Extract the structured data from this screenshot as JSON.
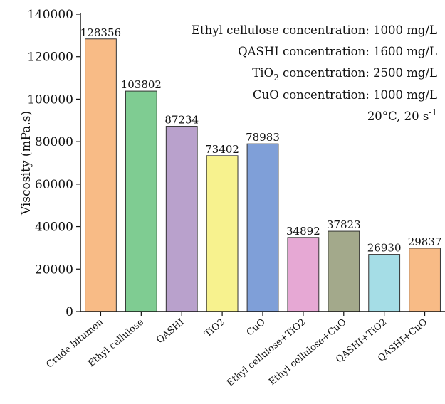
{
  "chart_data": {
    "type": "bar",
    "title": "",
    "xlabel": "",
    "ylabel": "Viscosity (mPa.s)",
    "ylim": [
      0,
      140000
    ],
    "yticks": [
      0,
      20000,
      40000,
      60000,
      80000,
      100000,
      120000,
      140000
    ],
    "grid": false,
    "categories": [
      "Crude bitumen",
      "Ethyl cellulose",
      "QASHI",
      "TiO2",
      "CuO",
      "Ethyl cellulose+TiO2",
      "Ethyl cellulose+CuO",
      "QASHI+TiO2",
      "QASHI+CuO"
    ],
    "values": [
      128356,
      103802,
      87234,
      73402,
      78983,
      34892,
      37823,
      26930,
      29837
    ],
    "data_labels": [
      "128356",
      "103802",
      "87234",
      "73402",
      "78983",
      "34892",
      "37823",
      "26930",
      "29837"
    ],
    "bar_colors": [
      "#f8bb86",
      "#7fcc92",
      "#b9a1cc",
      "#f7f28e",
      "#7f9fd8",
      "#e6a8d4",
      "#a3a98b",
      "#a5dde6",
      "#f8bb86"
    ],
    "annotations": [
      {
        "text": "Ethyl cellulose concentration: 1000 mg/L"
      },
      {
        "text": "QASHI concentration: 1600 mg/L"
      },
      {
        "prefix": "TiO",
        "sub": "2",
        "suffix": " concentration: 2500 mg/L"
      },
      {
        "text": "CuO concentration: 1000 mg/L"
      },
      {
        "prefix": "20°C, 20 s",
        "sup": "-1",
        "suffix": ""
      }
    ]
  }
}
